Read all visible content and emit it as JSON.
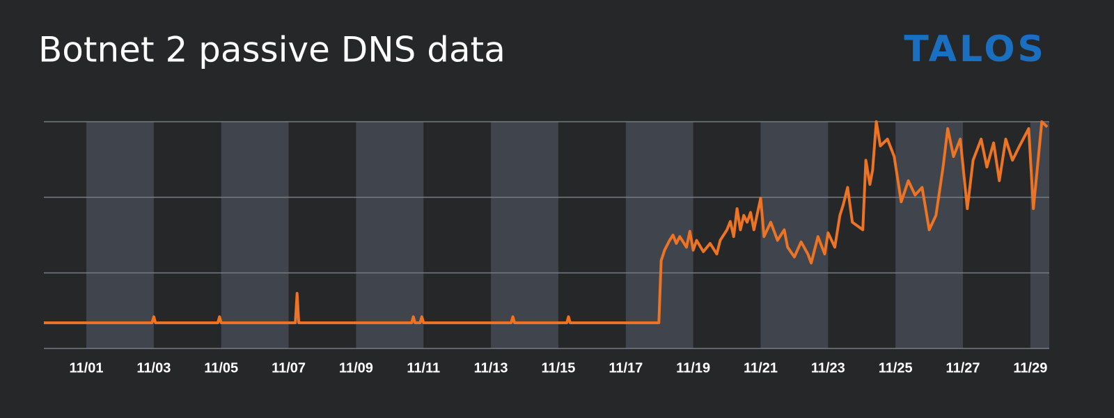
{
  "chart_data": {
    "type": "line",
    "title": "Botnet 2 passive DNS data",
    "logo": "TALOS",
    "color": "#ec7424",
    "logo_color": "#1b6fc0",
    "x": [
      -0.26,
      2.95,
      3.0,
      3.05,
      4.9,
      4.95,
      5.0,
      7.2,
      7.25,
      7.3,
      10.65,
      10.7,
      10.75,
      10.9,
      10.95,
      11.0,
      13.6,
      13.65,
      13.7,
      15.25,
      15.3,
      15.35,
      17.98,
      18.05,
      18.15,
      18.3,
      18.4,
      18.5,
      18.6,
      18.8,
      18.9,
      19.0,
      19.1,
      19.3,
      19.5,
      19.7,
      19.8,
      20.0,
      20.1,
      20.2,
      20.3,
      20.4,
      20.5,
      20.6,
      20.7,
      20.8,
      21.0,
      21.1,
      21.3,
      21.5,
      21.7,
      21.8,
      22.0,
      22.2,
      22.4,
      22.5,
      22.7,
      22.9,
      23.0,
      23.2,
      23.35,
      23.45,
      23.58,
      23.72,
      24.03,
      24.12,
      24.24,
      24.32,
      24.43,
      24.55,
      24.76,
      24.96,
      25.17,
      25.38,
      25.58,
      25.79,
      26.0,
      26.2,
      26.41,
      26.55,
      26.72,
      26.92,
      27.13,
      27.3,
      27.54,
      27.71,
      27.91,
      28.08,
      28.27,
      28.47,
      28.68,
      28.95,
      29.09,
      29.19,
      29.34,
      29.5
    ],
    "values": [
      0.34,
      0.34,
      0.42,
      0.34,
      0.34,
      0.42,
      0.34,
      0.34,
      0.73,
      0.34,
      0.34,
      0.42,
      0.34,
      0.34,
      0.42,
      0.34,
      0.34,
      0.42,
      0.34,
      0.34,
      0.42,
      0.34,
      0.34,
      1.16,
      1.3,
      1.43,
      1.5,
      1.39,
      1.48,
      1.34,
      1.55,
      1.3,
      1.43,
      1.28,
      1.39,
      1.25,
      1.43,
      1.57,
      1.68,
      1.48,
      1.85,
      1.57,
      1.76,
      1.67,
      1.8,
      1.57,
      1.99,
      1.48,
      1.67,
      1.43,
      1.57,
      1.34,
      1.21,
      1.41,
      1.25,
      1.13,
      1.48,
      1.25,
      1.53,
      1.34,
      1.76,
      1.9,
      2.13,
      1.67,
      1.57,
      2.49,
      2.17,
      2.36,
      3.0,
      2.68,
      2.77,
      2.54,
      1.94,
      2.22,
      2.03,
      2.13,
      1.57,
      1.76,
      2.4,
      2.91,
      2.54,
      2.77,
      1.85,
      2.49,
      2.77,
      2.4,
      2.72,
      2.22,
      2.77,
      2.49,
      2.68,
      2.91,
      1.85,
      2.31,
      3.0,
      2.93
    ],
    "xlim": [
      -0.26,
      29.56
    ],
    "xticks": [
      {
        "value": 1,
        "label": "11/01"
      },
      {
        "value": 3,
        "label": "11/03"
      },
      {
        "value": 5,
        "label": "11/05"
      },
      {
        "value": 7,
        "label": "11/07"
      },
      {
        "value": 9,
        "label": "11/09"
      },
      {
        "value": 11,
        "label": "11/11"
      },
      {
        "value": 13,
        "label": "11/13"
      },
      {
        "value": 15,
        "label": "11/15"
      },
      {
        "value": 17,
        "label": "11/17"
      },
      {
        "value": 19,
        "label": "11/19"
      },
      {
        "value": 21,
        "label": "11/21"
      },
      {
        "value": 23,
        "label": "11/23"
      },
      {
        "value": 25,
        "label": "11/25"
      },
      {
        "value": 27,
        "label": "11/27"
      },
      {
        "value": 29,
        "label": "11/29"
      }
    ],
    "ylim": [
      0,
      3
    ],
    "yticks": [
      0,
      1,
      2,
      3
    ],
    "ytick_labels": false,
    "grid": true,
    "stripes": true
  }
}
